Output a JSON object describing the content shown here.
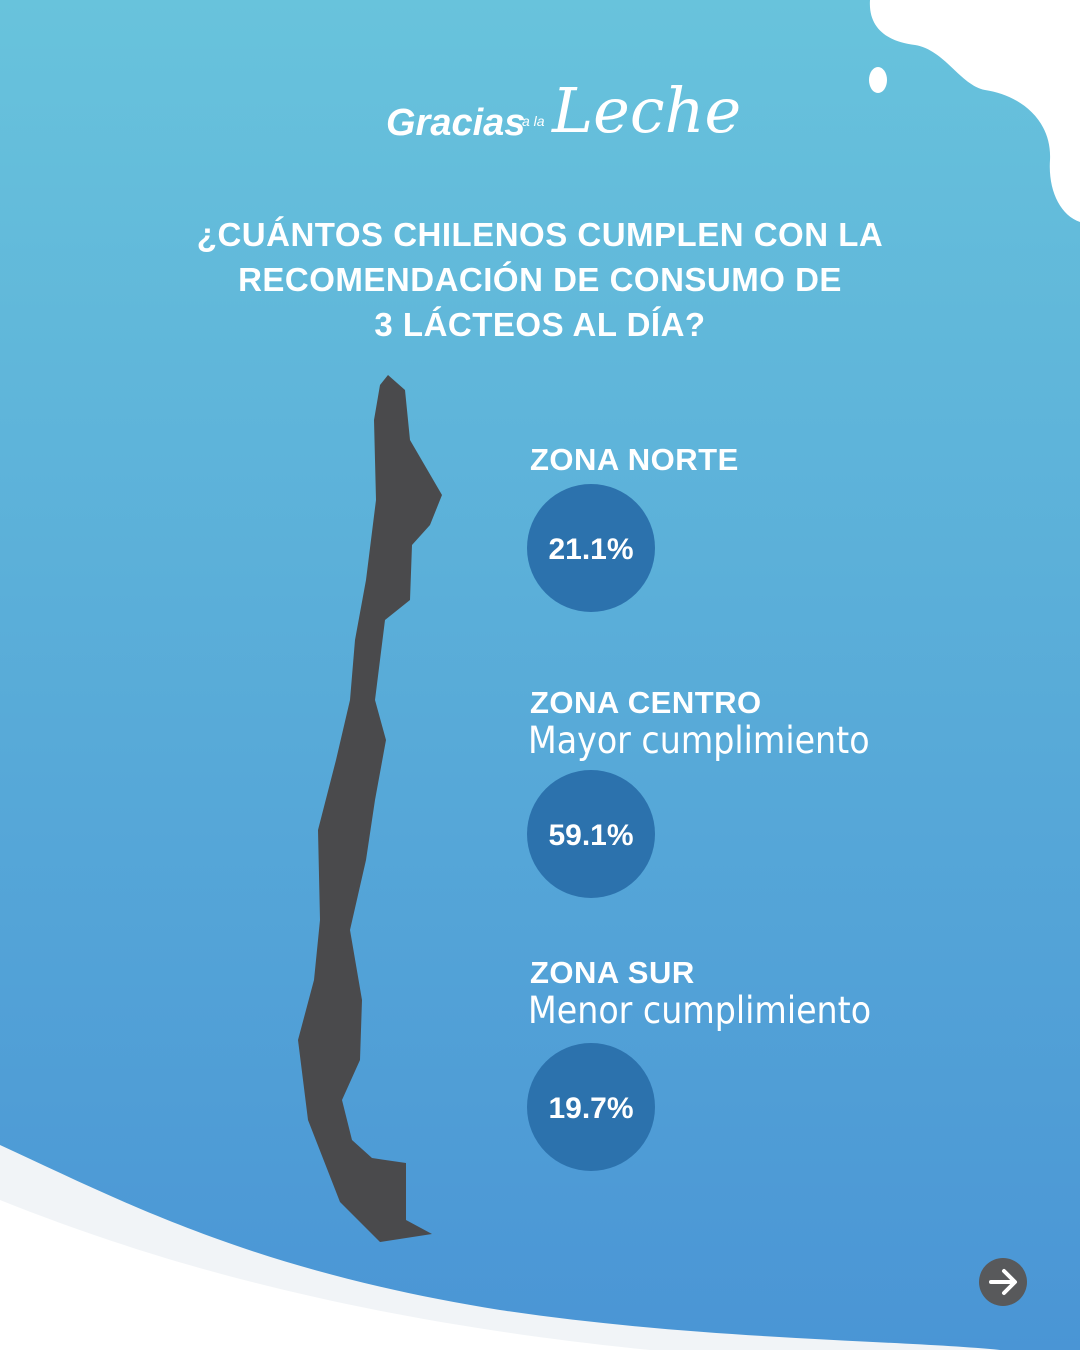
{
  "logo": {
    "word1": "Gracias",
    "word2": "a la",
    "word3": "Leche"
  },
  "title_lines": [
    "¿CUÁNTOS CHILENOS CUMPLEN CON LA",
    "RECOMENDACIÓN DE CONSUMO DE",
    "3 LÁCTEOS AL DÍA?"
  ],
  "zones": [
    {
      "name": "ZONA NORTE",
      "value": "21.1%"
    },
    {
      "name": "ZONA CENTRO",
      "subtitle": "Mayor cumplimiento",
      "value": "59.1%"
    },
    {
      "name": "ZONA SUR",
      "subtitle": "Menor cumplimiento",
      "value": "19.7%"
    }
  ]
}
